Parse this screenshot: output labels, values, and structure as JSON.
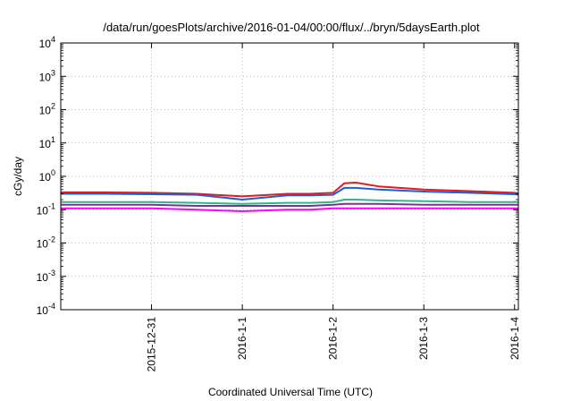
{
  "chart_data": {
    "type": "line",
    "title": "/data/run/goesPlots/archive/2016-01-04/00:00/flux/../bryn/5daysEarth.plot",
    "xlabel": "Coordinated Universal Time (UTC)",
    "ylabel": "cGy/day",
    "yscale": "log",
    "ylim": [
      0.0001,
      10000
    ],
    "xlim": [
      "2015-12-30T00:00",
      "2016-01-04T01:00"
    ],
    "grid": true,
    "y_ticks": [
      {
        "value": 0.0001,
        "base": "10",
        "exp": "-4"
      },
      {
        "value": 0.001,
        "base": "10",
        "exp": "-3"
      },
      {
        "value": 0.01,
        "base": "10",
        "exp": "-2"
      },
      {
        "value": 0.1,
        "base": "10",
        "exp": "-1"
      },
      {
        "value": 1,
        "base": "10",
        "exp": "0"
      },
      {
        "value": 10,
        "base": "10",
        "exp": "1"
      },
      {
        "value": 100,
        "base": "10",
        "exp": "2"
      },
      {
        "value": 1000,
        "base": "10",
        "exp": "3"
      },
      {
        "value": 10000,
        "base": "10",
        "exp": "4"
      }
    ],
    "x_ticks": [
      {
        "value": "2015-12-31T00:00",
        "label": "2015-12-31"
      },
      {
        "value": "2016-01-01T00:00",
        "label": "2016-1-1"
      },
      {
        "value": "2016-01-02T00:00",
        "label": "2016-1-2"
      },
      {
        "value": "2016-01-03T00:00",
        "label": "2016-1-3"
      },
      {
        "value": "2016-01-04T00:00",
        "label": "2016-1-4"
      }
    ],
    "series": [
      {
        "color": "#e41a1c",
        "x": [
          "2015-12-30T00:00",
          "2015-12-30T12:00",
          "2015-12-31T00:00",
          "2015-12-31T12:00",
          "2016-01-01T00:00",
          "2016-01-01T12:00",
          "2016-01-01T18:00",
          "2016-01-02T00:00",
          "2016-01-02T03:00",
          "2016-01-02T06:00",
          "2016-01-02T12:00",
          "2016-01-03T00:00",
          "2016-01-03T12:00",
          "2016-01-04T00:00",
          "2016-01-04T01:00"
        ],
        "y": [
          0.33,
          0.33,
          0.32,
          0.3,
          0.25,
          0.3,
          0.3,
          0.32,
          0.62,
          0.65,
          0.5,
          0.4,
          0.36,
          0.32,
          0.31
        ]
      },
      {
        "color": "#1f5fd6",
        "x": [
          "2015-12-30T00:00",
          "2015-12-30T12:00",
          "2015-12-31T00:00",
          "2015-12-31T12:00",
          "2016-01-01T00:00",
          "2016-01-01T12:00",
          "2016-01-01T18:00",
          "2016-01-02T00:00",
          "2016-01-02T03:00",
          "2016-01-02T06:00",
          "2016-01-02T12:00",
          "2016-01-03T00:00",
          "2016-01-03T12:00",
          "2016-01-04T00:00",
          "2016-01-04T01:00"
        ],
        "y": [
          0.3,
          0.3,
          0.29,
          0.28,
          0.2,
          0.27,
          0.27,
          0.28,
          0.45,
          0.45,
          0.4,
          0.35,
          0.32,
          0.29,
          0.28
        ]
      },
      {
        "color": "#33b58a",
        "x": [
          "2015-12-30T00:00",
          "2015-12-30T12:00",
          "2015-12-31T00:00",
          "2015-12-31T12:00",
          "2016-01-01T00:00",
          "2016-01-01T12:00",
          "2016-01-01T18:00",
          "2016-01-02T00:00",
          "2016-01-02T03:00",
          "2016-01-02T06:00",
          "2016-01-02T12:00",
          "2016-01-03T00:00",
          "2016-01-03T12:00",
          "2016-01-04T00:00",
          "2016-01-04T01:00"
        ],
        "y": [
          0.17,
          0.17,
          0.17,
          0.16,
          0.15,
          0.16,
          0.16,
          0.17,
          0.2,
          0.2,
          0.19,
          0.18,
          0.17,
          0.17,
          0.17
        ]
      },
      {
        "color": "#7b3294",
        "x": [
          "2015-12-30T00:00",
          "2015-12-30T12:00",
          "2015-12-31T00:00",
          "2015-12-31T12:00",
          "2016-01-01T00:00",
          "2016-01-01T12:00",
          "2016-01-01T18:00",
          "2016-01-02T00:00",
          "2016-01-02T03:00",
          "2016-01-02T06:00",
          "2016-01-02T12:00",
          "2016-01-03T00:00",
          "2016-01-03T12:00",
          "2016-01-04T00:00",
          "2016-01-04T01:00"
        ],
        "y": [
          0.14,
          0.14,
          0.14,
          0.13,
          0.13,
          0.13,
          0.13,
          0.14,
          0.15,
          0.15,
          0.15,
          0.14,
          0.14,
          0.14,
          0.14
        ]
      },
      {
        "color": "#ff00ff",
        "x": [
          "2015-12-30T00:00",
          "2015-12-30T12:00",
          "2015-12-31T00:00",
          "2015-12-31T12:00",
          "2016-01-01T00:00",
          "2016-01-01T12:00",
          "2016-01-01T18:00",
          "2016-01-02T00:00",
          "2016-01-02T03:00",
          "2016-01-02T06:00",
          "2016-01-02T12:00",
          "2016-01-03T00:00",
          "2016-01-03T12:00",
          "2016-01-04T00:00",
          "2016-01-04T01:00"
        ],
        "y": [
          0.11,
          0.11,
          0.11,
          0.1,
          0.09,
          0.1,
          0.1,
          0.11,
          0.11,
          0.11,
          0.11,
          0.11,
          0.11,
          0.11,
          0.11
        ]
      }
    ]
  }
}
